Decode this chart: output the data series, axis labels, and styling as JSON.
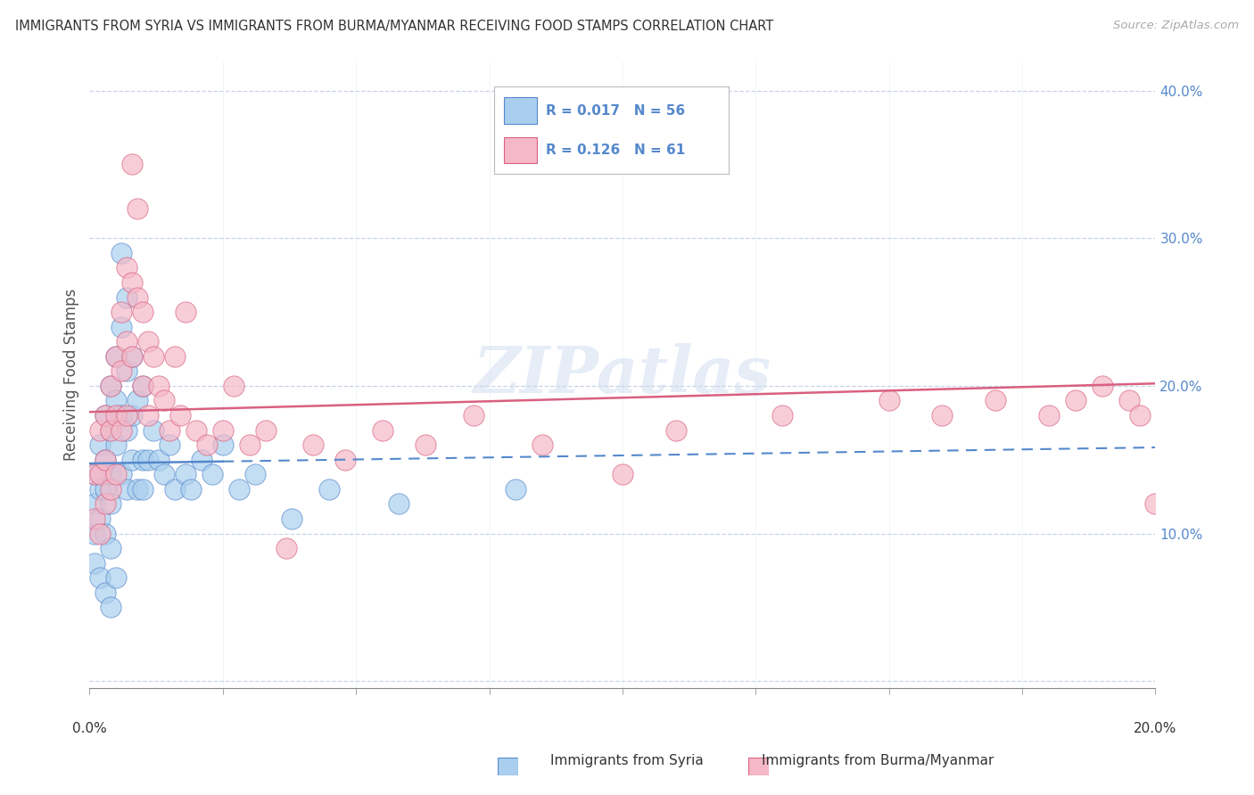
{
  "title": "IMMIGRANTS FROM SYRIA VS IMMIGRANTS FROM BURMA/MYANMAR RECEIVING FOOD STAMPS CORRELATION CHART",
  "source": "Source: ZipAtlas.com",
  "ylabel": "Receiving Food Stamps",
  "xlim": [
    0.0,
    0.2
  ],
  "ylim": [
    -0.005,
    0.42
  ],
  "yticks": [
    0.0,
    0.1,
    0.2,
    0.3,
    0.4
  ],
  "xtick_positions": [
    0.0,
    0.025,
    0.05,
    0.075,
    0.1,
    0.125,
    0.15,
    0.175,
    0.2
  ],
  "legend_R_syria": "R = 0.017",
  "legend_N_syria": "N = 56",
  "legend_R_burma": "R = 0.126",
  "legend_N_burma": "N = 61",
  "color_syria": "#aacfee",
  "color_burma": "#f5b8c8",
  "trendline_syria_color": "#5588cc",
  "trendline_burma_color": "#d96080",
  "background_color": "#ffffff",
  "grid_color": "#c8d4e8",
  "watermark": "ZIPatlas",
  "syria_x": [
    0.001,
    0.001,
    0.001,
    0.001,
    0.002,
    0.002,
    0.002,
    0.002,
    0.003,
    0.003,
    0.003,
    0.003,
    0.003,
    0.004,
    0.004,
    0.004,
    0.004,
    0.004,
    0.004,
    0.005,
    0.005,
    0.005,
    0.005,
    0.006,
    0.006,
    0.006,
    0.006,
    0.007,
    0.007,
    0.007,
    0.007,
    0.008,
    0.008,
    0.008,
    0.009,
    0.009,
    0.01,
    0.01,
    0.01,
    0.011,
    0.012,
    0.013,
    0.014,
    0.015,
    0.016,
    0.018,
    0.019,
    0.021,
    0.023,
    0.025,
    0.028,
    0.031,
    0.038,
    0.045,
    0.058,
    0.08
  ],
  "syria_y": [
    0.14,
    0.12,
    0.1,
    0.08,
    0.16,
    0.13,
    0.11,
    0.07,
    0.18,
    0.15,
    0.13,
    0.1,
    0.06,
    0.2,
    0.17,
    0.14,
    0.12,
    0.09,
    0.05,
    0.22,
    0.19,
    0.16,
    0.07,
    0.29,
    0.24,
    0.18,
    0.14,
    0.26,
    0.21,
    0.17,
    0.13,
    0.22,
    0.18,
    0.15,
    0.19,
    0.13,
    0.2,
    0.15,
    0.13,
    0.15,
    0.17,
    0.15,
    0.14,
    0.16,
    0.13,
    0.14,
    0.13,
    0.15,
    0.14,
    0.16,
    0.13,
    0.14,
    0.11,
    0.13,
    0.12,
    0.13
  ],
  "burma_x": [
    0.001,
    0.001,
    0.002,
    0.002,
    0.002,
    0.003,
    0.003,
    0.003,
    0.004,
    0.004,
    0.004,
    0.005,
    0.005,
    0.005,
    0.006,
    0.006,
    0.006,
    0.007,
    0.007,
    0.007,
    0.008,
    0.008,
    0.008,
    0.009,
    0.009,
    0.01,
    0.01,
    0.011,
    0.011,
    0.012,
    0.013,
    0.014,
    0.015,
    0.016,
    0.017,
    0.018,
    0.02,
    0.022,
    0.025,
    0.027,
    0.03,
    0.033,
    0.037,
    0.042,
    0.048,
    0.055,
    0.063,
    0.072,
    0.085,
    0.1,
    0.11,
    0.13,
    0.15,
    0.16,
    0.17,
    0.18,
    0.185,
    0.19,
    0.195,
    0.197,
    0.2
  ],
  "burma_y": [
    0.14,
    0.11,
    0.17,
    0.14,
    0.1,
    0.18,
    0.15,
    0.12,
    0.2,
    0.17,
    0.13,
    0.22,
    0.18,
    0.14,
    0.25,
    0.21,
    0.17,
    0.28,
    0.23,
    0.18,
    0.35,
    0.27,
    0.22,
    0.32,
    0.26,
    0.25,
    0.2,
    0.23,
    0.18,
    0.22,
    0.2,
    0.19,
    0.17,
    0.22,
    0.18,
    0.25,
    0.17,
    0.16,
    0.17,
    0.2,
    0.16,
    0.17,
    0.09,
    0.16,
    0.15,
    0.17,
    0.16,
    0.18,
    0.16,
    0.14,
    0.17,
    0.18,
    0.19,
    0.18,
    0.19,
    0.18,
    0.19,
    0.2,
    0.19,
    0.18,
    0.12
  ]
}
